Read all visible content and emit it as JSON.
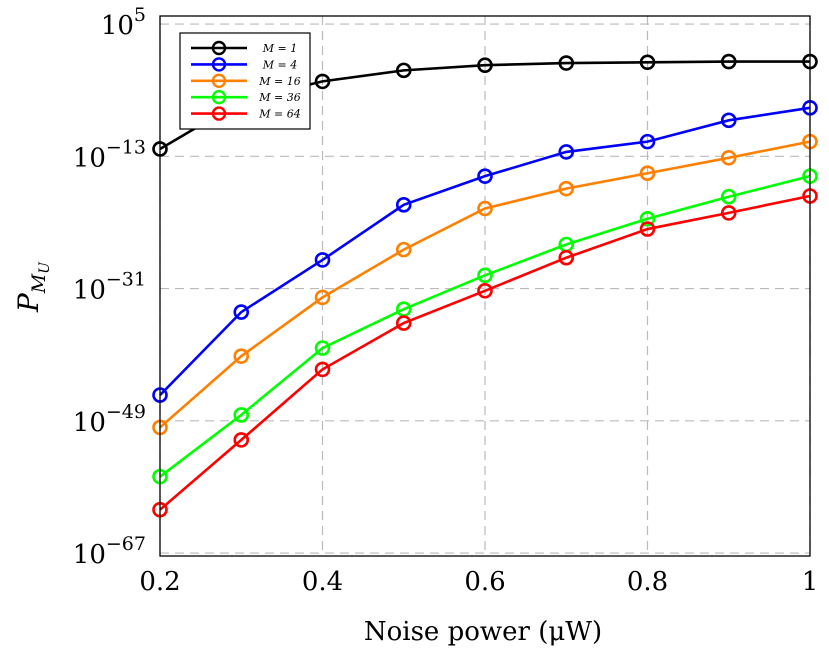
{
  "chart_data": {
    "type": "line",
    "title": "",
    "xlabel": "Noise power (μW)",
    "ylabel": "P",
    "ylabel_subscript": "M",
    "ylabel_subsubscript": "U",
    "y_scale": "log",
    "xlim": [
      0.2,
      1
    ],
    "ylim_log10": [
      -67.4,
      6.1
    ],
    "x_ticks": [
      "0.2",
      "0.4",
      "0.6",
      "0.8",
      "1"
    ],
    "x_tick_values": [
      0.2,
      0.4,
      0.6,
      0.8,
      1
    ],
    "y_tick_exponents": [
      5,
      -13,
      -31,
      -49,
      -67
    ],
    "y_tick_base": "10",
    "y_tick_labels": [
      "5",
      "−13",
      "−31",
      "−49",
      "−67"
    ],
    "grid": true,
    "legend_placement": "top-left",
    "x": [
      0.2,
      0.3,
      0.4,
      0.5,
      0.6,
      0.7,
      0.8,
      0.9,
      1.0
    ],
    "series": [
      {
        "name": "M = 1",
        "color": "#000000",
        "log10_values": [
          -12.0,
          -5.5,
          -2.8,
          -1.3,
          -0.6,
          -0.3,
          -0.2,
          -0.1,
          -0.1
        ]
      },
      {
        "name": "M = 4",
        "color": "#0000ff",
        "log10_values": [
          -45.5,
          -34.2,
          -27.1,
          -19.6,
          -15.7,
          -12.4,
          -11.0,
          -8.1,
          -6.4
        ]
      },
      {
        "name": "M = 16",
        "color": "#ff8000",
        "log10_values": [
          -49.9,
          -40.2,
          -32.2,
          -25.7,
          -20.1,
          -17.4,
          -15.3,
          -13.2,
          -11.0
        ]
      },
      {
        "name": "M = 36",
        "color": "#00ff00",
        "log10_values": [
          -56.6,
          -48.2,
          -39.1,
          -33.8,
          -29.2,
          -25.0,
          -21.5,
          -18.5,
          -15.7
        ]
      },
      {
        "name": "M = 64",
        "color": "#ff0000",
        "log10_values": [
          -61.1,
          -51.6,
          -42.0,
          -35.7,
          -31.3,
          -26.8,
          -22.9,
          -20.7,
          -18.4
        ]
      }
    ]
  }
}
